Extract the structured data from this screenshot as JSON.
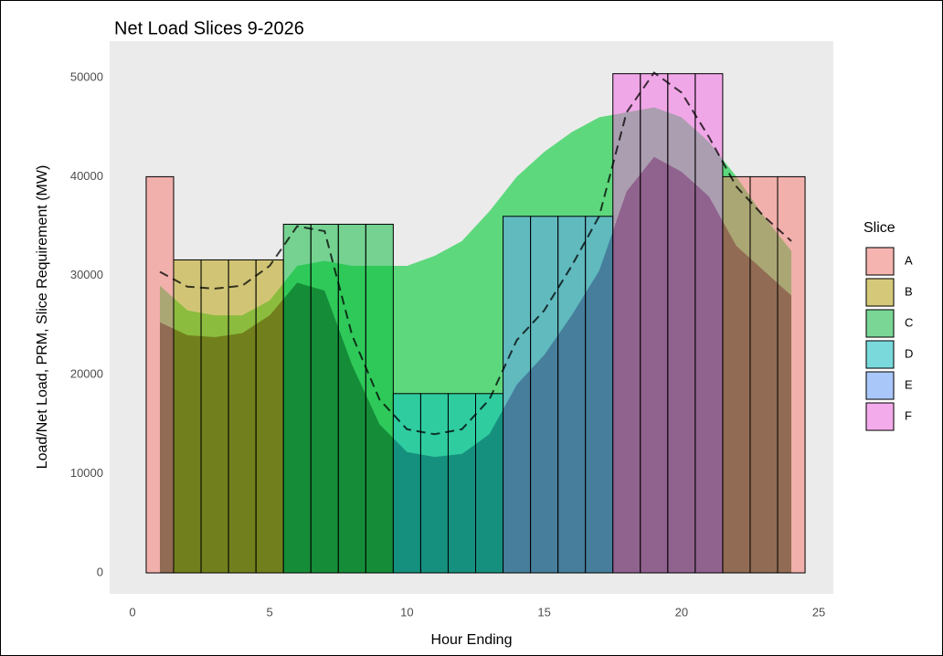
{
  "chart_data": {
    "type": "bar",
    "title": "Net Load Slices 9-2026",
    "x_label": "Hour Ending",
    "y_label": "Load/Net Load, PRM, Slice Requirement (MW)",
    "legend_title": "Slice",
    "x": [
      1,
      2,
      3,
      4,
      5,
      6,
      7,
      8,
      9,
      10,
      11,
      12,
      13,
      14,
      15,
      16,
      17,
      18,
      19,
      20,
      21,
      22,
      23,
      24
    ],
    "xlim": [
      -0.83,
      25.53
    ],
    "xticks": [
      0,
      5,
      10,
      15,
      20,
      25
    ],
    "ylim": [
      -2120,
      53690
    ],
    "yticks": [
      0,
      10000,
      20000,
      30000,
      40000,
      50000
    ],
    "grid": true,
    "bar_alpha": 0.5,
    "series": [
      {
        "name": "A",
        "color": "#F8766D",
        "values": [
          40000,
          null,
          null,
          null,
          null,
          null,
          null,
          null,
          null,
          null,
          null,
          null,
          null,
          null,
          null,
          null,
          null,
          null,
          null,
          null,
          null,
          40000,
          40000,
          40000
        ]
      },
      {
        "name": "B",
        "color": "#B79F00",
        "values": [
          null,
          31600,
          31600,
          31600,
          31600,
          null,
          null,
          null,
          null,
          null,
          null,
          null,
          null,
          null,
          null,
          null,
          null,
          null,
          null,
          null,
          null,
          null,
          null,
          null
        ]
      },
      {
        "name": "C",
        "color": "#00BA38",
        "values": [
          null,
          null,
          null,
          null,
          null,
          35200,
          35200,
          35200,
          35200,
          null,
          null,
          null,
          null,
          null,
          null,
          null,
          null,
          null,
          null,
          null,
          null,
          null,
          null,
          null
        ]
      },
      {
        "name": "D",
        "color": "#00BFC4",
        "values": [
          null,
          null,
          null,
          null,
          null,
          null,
          null,
          null,
          null,
          18100,
          18100,
          18100,
          18100,
          null,
          null,
          null,
          null,
          null,
          null,
          null,
          null,
          null,
          null,
          null
        ]
      },
      {
        "name": "E",
        "color": "#619CFF",
        "values": [
          null,
          null,
          null,
          null,
          null,
          null,
          null,
          null,
          null,
          null,
          null,
          null,
          null,
          36000,
          36000,
          36000,
          36000,
          null,
          null,
          null,
          null,
          null,
          null,
          null
        ]
      },
      {
        "name": "F",
        "color": "#F564E3",
        "values": [
          null,
          null,
          null,
          null,
          null,
          null,
          null,
          null,
          null,
          null,
          null,
          null,
          null,
          null,
          null,
          null,
          null,
          50400,
          50400,
          50400,
          50400,
          null,
          null,
          null
        ]
      }
    ],
    "areas": [
      {
        "color": "#00CC33",
        "opacity": 0.6,
        "values": [
          29000,
          26500,
          26000,
          26000,
          27500,
          31000,
          31500,
          31000,
          31000,
          31000,
          32000,
          33500,
          36500,
          40000,
          42500,
          44500,
          46000,
          46500,
          47000,
          46000,
          43500,
          40000,
          36000,
          32500
        ]
      },
      {
        "color": "#000000",
        "opacity": 0.55,
        "values": [
          25300,
          24000,
          23800,
          24200,
          26000,
          29300,
          28500,
          21000,
          15000,
          12200,
          11700,
          12000,
          14000,
          19000,
          22000,
          26000,
          30500,
          38500,
          42000,
          40500,
          38000,
          33000,
          30500,
          28000
        ]
      }
    ],
    "line": {
      "color": "#000000",
      "opacity": 0.75,
      "dash": true,
      "values": [
        30400,
        28900,
        28700,
        29000,
        31000,
        35000,
        34500,
        24000,
        17500,
        14500,
        14000,
        14500,
        17500,
        23500,
        26500,
        31000,
        36000,
        46500,
        50500,
        48500,
        44000,
        39000,
        36000,
        33500
      ]
    }
  }
}
